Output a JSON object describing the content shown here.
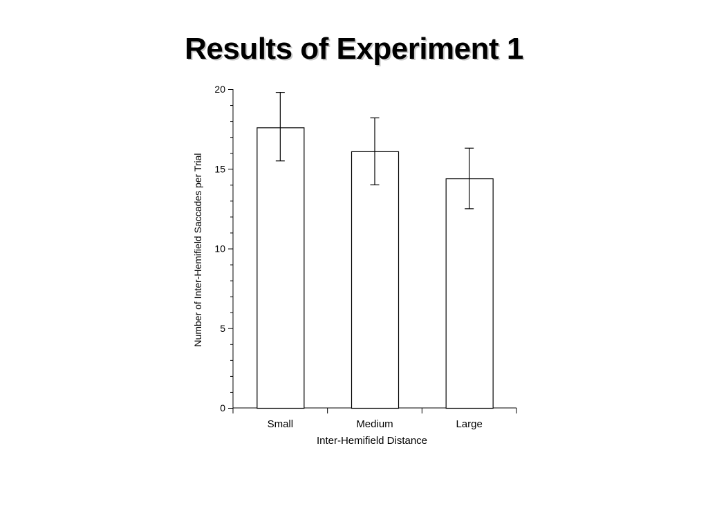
{
  "slide": {
    "title": "Results of Experiment 1"
  },
  "chart_data": {
    "type": "bar",
    "categories": [
      "Small",
      "Medium",
      "Large"
    ],
    "values": [
      17.6,
      16.1,
      14.4
    ],
    "error_bars": [
      {
        "low": 15.5,
        "high": 19.8
      },
      {
        "low": 14.0,
        "high": 18.2
      },
      {
        "low": 12.5,
        "high": 16.3
      }
    ],
    "title": "",
    "xlabel": "Inter-Hemifield Distance",
    "ylabel": "Number of Inter-Hemifield Saccades per Trial",
    "ylim": [
      0,
      20
    ],
    "yticks": [
      0,
      5,
      10,
      15,
      20
    ],
    "grid": false,
    "bar_fill": "#ffffff",
    "bar_stroke": "#000000"
  }
}
